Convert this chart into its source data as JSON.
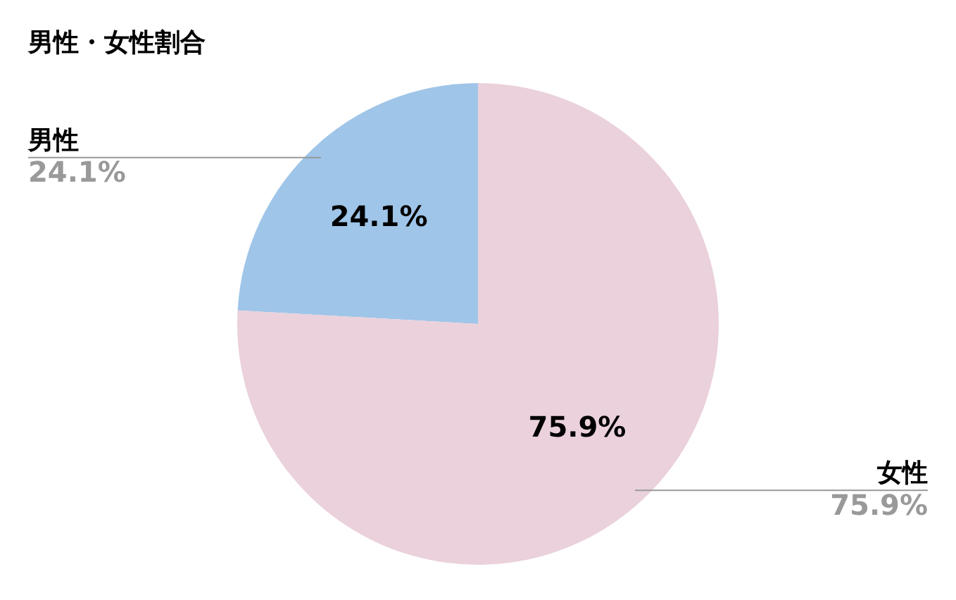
{
  "chart_data": {
    "type": "pie",
    "title": "男性・女性割合",
    "categories": [
      "男性",
      "女性"
    ],
    "values": [
      24.1,
      75.9
    ],
    "colors": [
      "#9fc5e8",
      "#ead1dc"
    ],
    "value_labels": [
      "24.1%",
      "75.9%"
    ],
    "legend": false
  }
}
